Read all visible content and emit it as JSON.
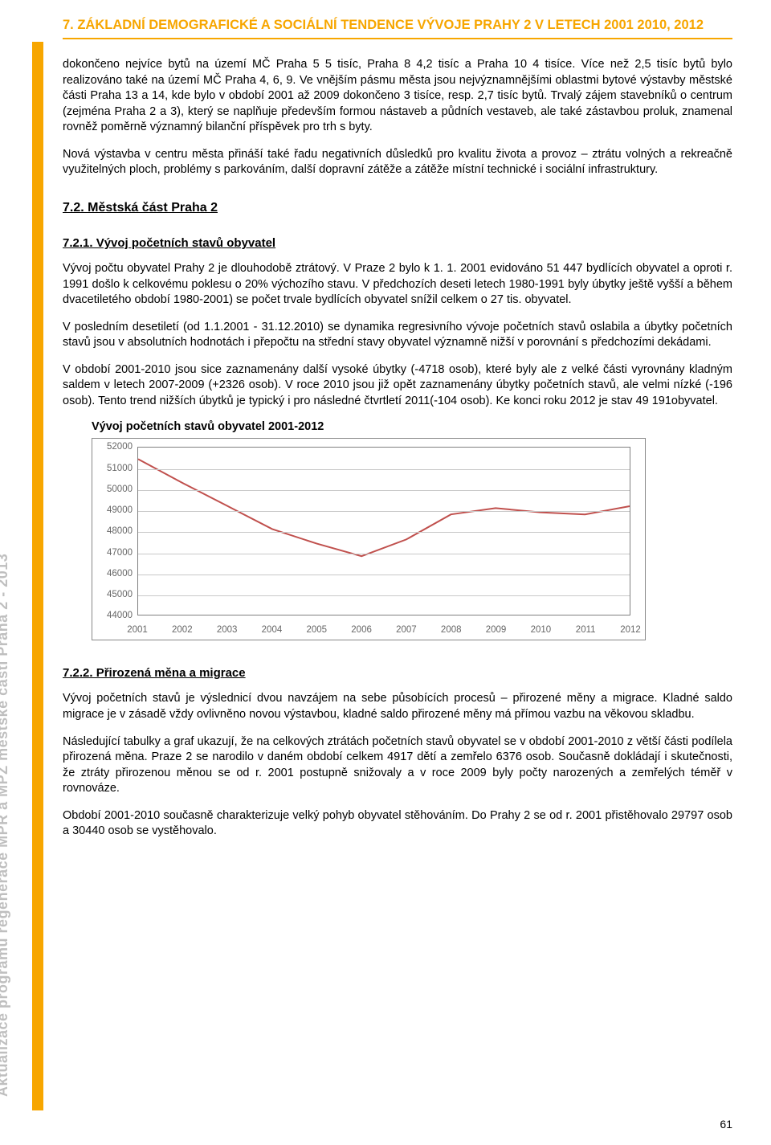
{
  "header": "7. ZÁKLADNÍ DEMOGRAFICKÉ A SOCIÁLNÍ TENDENCE VÝVOJE PRAHY 2 V LETECH 2001 2010, 2012",
  "sidebar_text": "Aktualizace programu regenerace MPR a MPZ městské části Praha 2  -  2013",
  "para1": "dokončeno nejvíce bytů na území MČ Praha 5 5 tisíc, Praha 8 4,2 tisíc a Praha 10 4 tisíce. Více než 2,5 tisíc bytů bylo realizováno také na území MČ Praha 4, 6, 9. Ve vnějším pásmu města jsou nejvýznamnějšími oblastmi bytové výstavby městské části Praha 13 a 14, kde bylo v období 2001 až 2009 dokončeno 3 tisíce, resp. 2,7 tisíc bytů. Trvalý zájem stavebníků o centrum (zejména Praha 2 a 3), který se naplňuje především formou nástaveb a půdních vestaveb, ale také zástavbou proluk, znamenal rovněž poměrně významný bilanční příspěvek pro trh s byty.",
  "para2": "Nová výstavba v centru města přináší také řadu negativních důsledků pro kvalitu života a provoz – ztrátu volných a rekreačně využitelných ploch, problémy s parkováním, další dopravní zátěže a zátěže místní technické i sociální infrastruktury.",
  "section": "7.2. Městská část Praha 2",
  "subsection1": "7.2.1. Vývoj početních stavů obyvatel",
  "para3": "Vývoj počtu obyvatel Prahy 2 je dlouhodobě ztrátový. V Praze 2 bylo k 1. 1. 2001 evidováno 51 447 bydlících obyvatel a oproti r. 1991 došlo k celkovému poklesu o 20% výchozího stavu. V předchozích deseti letech 1980-1991 byly úbytky ještě vyšší a během dvacetiletého období 1980-2001) se počet trvale bydlících obyvatel snížil celkem o 27 tis. obyvatel.",
  "para4": "V posledním desetiletí (od 1.1.2001 - 31.12.2010) se dynamika regresivního vývoje početních stavů oslabila a úbytky početních stavů jsou v absolutních hodnotách i přepočtu na střední stavy obyvatel významně nižší v porovnání s předchozími dekádami.",
  "para5": "V období 2001-2010 jsou sice zaznamenány další vysoké úbytky (-4718 osob), které byly ale z velké části vyrovnány kladným saldem v letech 2007-2009 (+2326 osob). V roce 2010 jsou již opět zaznamenány úbytky početních stavů, ale velmi nízké (-196 osob). Tento trend nižších úbytků je typický i pro následné čtvrtletí 2011(-104 osob). Ke konci roku 2012 je stav 49 191obyvatel.",
  "chart": {
    "title": "Vývoj početních stavů obyvatel 2001-2012",
    "type": "line",
    "line_color": "#c0504d",
    "line_width": 2,
    "grid_color": "#c8c8c8",
    "border_color": "#808080",
    "background": "#ffffff",
    "ymin": 44000,
    "ymax": 52000,
    "ytick_step": 1000,
    "yticks": [
      "44000",
      "45000",
      "46000",
      "47000",
      "48000",
      "49000",
      "50000",
      "51000",
      "52000"
    ],
    "xcats": [
      "2001",
      "2002",
      "2003",
      "2004",
      "2005",
      "2006",
      "2007",
      "2008",
      "2009",
      "2010",
      "2011",
      "2012"
    ],
    "values": [
      51447,
      50300,
      49200,
      48100,
      47400,
      46800,
      47600,
      48800,
      49100,
      48900,
      48800,
      49191
    ]
  },
  "subsection2": "7.2.2. Přirozená měna a migrace",
  "para6": "Vývoj početních stavů je výslednicí dvou navzájem na sebe působících procesů – přirozené měny a migrace. Kladné saldo migrace je v zásadě vždy ovlivněno novou výstavbou, kladné saldo přirozené měny má přímou vazbu na věkovou skladbu.",
  "para7": "Následující tabulky a graf ukazují, že na celkových ztrátách početních stavů obyvatel se v období 2001-2010 z větší části podílela přirozená měna. Praze 2 se narodilo v daném období celkem 4917 dětí a zemřelo 6376 osob. Současně dokládají i skutečnosti, že ztráty přirozenou měnou se od r. 2001 postupně snižovaly a v roce 2009 byly počty narozených a zemřelých téměř v rovnováze.",
  "para8": "Období 2001-2010 současně charakterizuje velký pohyb obyvatel stěhováním. Do Prahy 2 se od r. 2001 přistěhovalo 29797 osob a 30440 osob se vystěhovalo.",
  "page_num": "61"
}
